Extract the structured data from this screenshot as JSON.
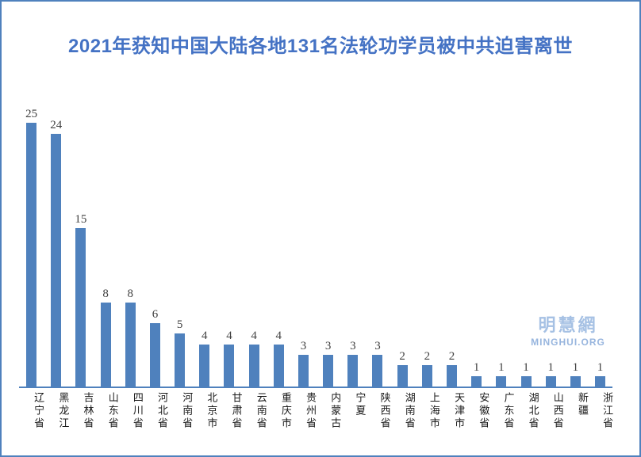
{
  "page": {
    "background": "#ffffff",
    "border_color": "#4f81bd"
  },
  "title": {
    "text": "2021年获知中国大陆各地131名法轮功学员被中共迫害离世",
    "color": "#4472c4"
  },
  "watermark": {
    "cjk": "明慧網",
    "latin": "MINGHUI.ORG",
    "color": "#a6c1e4",
    "color_latin": "#97b5de"
  },
  "chart_data": {
    "type": "bar",
    "title": "2021年获知中国大陆各地131名法轮功学员被中共迫害离世",
    "categories": [
      "辽宁省",
      "黑龙江",
      "吉林省",
      "山东省",
      "四川省",
      "河北省",
      "河南省",
      "北京市",
      "甘肃省",
      "云南省",
      "重庆市",
      "贵州省",
      "内蒙古",
      "宁夏",
      "陕西省",
      "湖南省",
      "上海市",
      "天津市",
      "安徽省",
      "广东省",
      "湖北省",
      "山西省",
      "新疆",
      "浙江省"
    ],
    "values": [
      25,
      24,
      15,
      8,
      8,
      6,
      5,
      4,
      4,
      4,
      4,
      3,
      3,
      3,
      3,
      2,
      2,
      2,
      1,
      1,
      1,
      1,
      1,
      1
    ],
    "xlabel": "",
    "ylabel": "",
    "ylim": [
      0,
      26
    ],
    "grid": false,
    "legend": false,
    "data_labels": true,
    "bar_color": "#4f81bd",
    "axis_color": "#4f81bd",
    "value_label_color": "#404040",
    "category_label_color": "#1a1a1a"
  }
}
